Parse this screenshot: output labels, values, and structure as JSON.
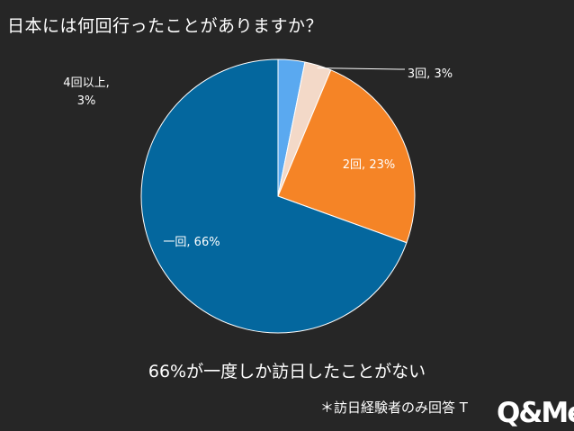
{
  "title": "日本には何回行ったことがありますか？",
  "caption": "66%が一度しか訪日したことがない",
  "footnote": "＊訪日経験者のみ回答 T",
  "logo_text": "Q&Me",
  "chart_data": {
    "type": "pie",
    "title": "日本には何回行ったことがありますか？",
    "start_angle_deg": 0,
    "direction": "clockwise",
    "slices": [
      {
        "label": "4回以上",
        "value": 3,
        "color": "#5aa9f0",
        "data_label": "4回以上,\n3%"
      },
      {
        "label": "3回",
        "value": 3,
        "color": "#f3d9c8",
        "data_label": "3回, 3%"
      },
      {
        "label": "2回",
        "value": 23,
        "color": "#f58426",
        "data_label": "2回, 23%"
      },
      {
        "label": "一回",
        "value": 66,
        "color": "#04679e",
        "data_label": "一回, 66%"
      }
    ]
  }
}
